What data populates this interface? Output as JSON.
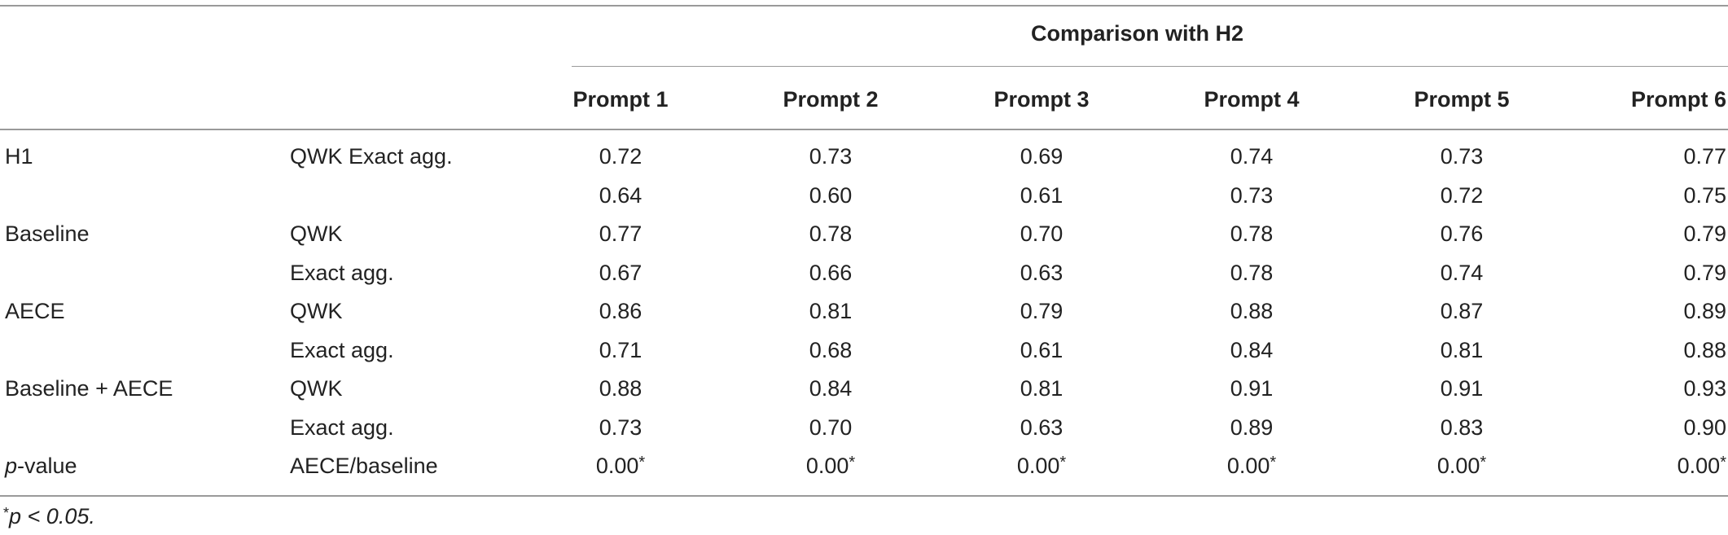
{
  "table": {
    "group_header": "Comparison with H2",
    "columns": [
      "Prompt 1",
      "Prompt 2",
      "Prompt 3",
      "Prompt 4",
      "Prompt 5",
      "Prompt 6"
    ],
    "rows": [
      {
        "group": "H1",
        "metric": "QWK Exact agg.",
        "values": [
          "0.72",
          "0.73",
          "0.69",
          "0.74",
          "0.73",
          "0.77"
        ]
      },
      {
        "group": "",
        "metric": "",
        "values": [
          "0.64",
          "0.60",
          "0.61",
          "0.73",
          "0.72",
          "0.75"
        ]
      },
      {
        "group": "Baseline",
        "metric": "QWK",
        "values": [
          "0.77",
          "0.78",
          "0.70",
          "0.78",
          "0.76",
          "0.79"
        ]
      },
      {
        "group": "",
        "metric": "Exact agg.",
        "values": [
          "0.67",
          "0.66",
          "0.63",
          "0.78",
          "0.74",
          "0.79"
        ]
      },
      {
        "group": "AECE",
        "metric": "QWK",
        "values": [
          "0.86",
          "0.81",
          "0.79",
          "0.88",
          "0.87",
          "0.89"
        ]
      },
      {
        "group": "",
        "metric": "Exact agg.",
        "values": [
          "0.71",
          "0.68",
          "0.61",
          "0.84",
          "0.81",
          "0.88"
        ]
      },
      {
        "group": "Baseline + AECE",
        "metric": "QWK",
        "values": [
          "0.88",
          "0.84",
          "0.81",
          "0.91",
          "0.91",
          "0.93"
        ]
      },
      {
        "group": "",
        "metric": "Exact agg.",
        "values": [
          "0.73",
          "0.70",
          "0.63",
          "0.89",
          "0.83",
          "0.90"
        ]
      },
      {
        "group_italic": "p",
        "group_rest": "-value",
        "metric": "AECE/baseline",
        "values": [
          "0.00",
          "0.00",
          "0.00",
          "0.00",
          "0.00",
          "0.00"
        ],
        "marker": "*"
      }
    ],
    "footnote": {
      "marker": "*",
      "text": "p < 0.05."
    }
  }
}
